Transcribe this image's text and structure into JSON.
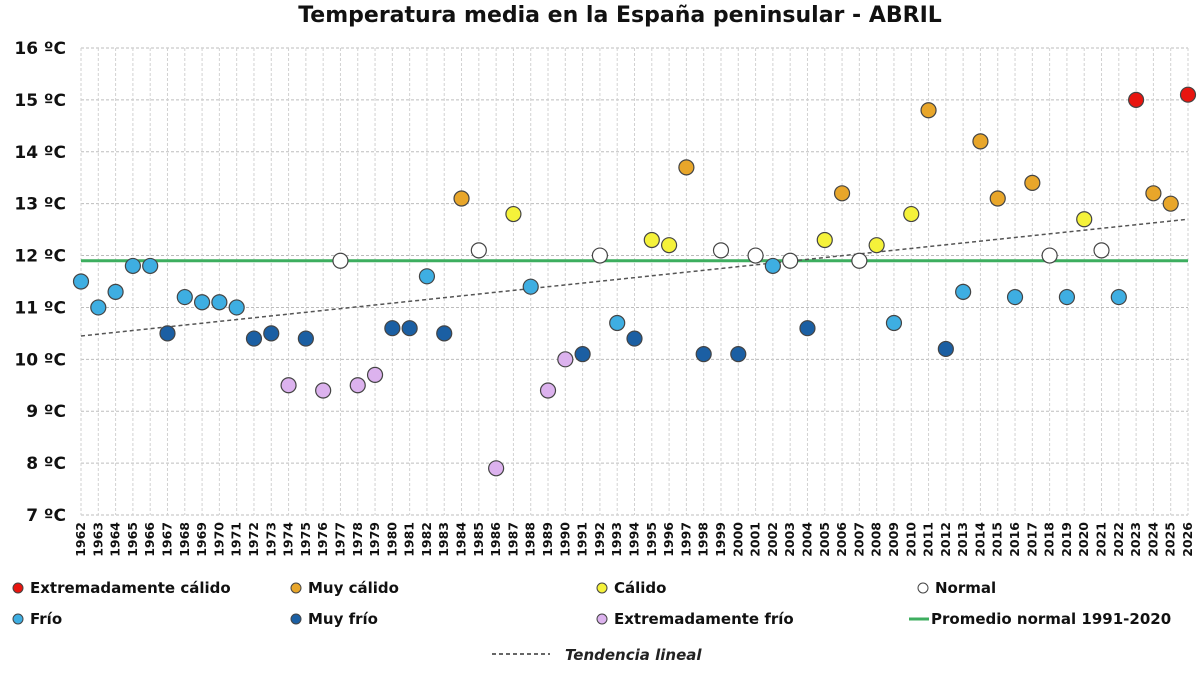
{
  "chart_data": {
    "type": "scatter",
    "title": "Temperatura media en la España peninsular - ABRIL",
    "y_unit": "ºC",
    "ylim": [
      7,
      16
    ],
    "yticks": [
      7,
      8,
      9,
      10,
      11,
      12,
      13,
      14,
      15,
      16
    ],
    "xlim": [
      1962,
      2026
    ],
    "x_tick_labels": [
      "1962",
      "1963",
      "1964",
      "1965",
      "1966",
      "1967",
      "1968",
      "1969",
      "1970",
      "1971",
      "1972",
      "1973",
      "1974",
      "1975",
      "1976",
      "1977",
      "1978",
      "1979",
      "1980",
      "1981",
      "1982",
      "1983",
      "1984",
      "1985",
      "1986",
      "1987",
      "1988",
      "1989",
      "1990",
      "1991",
      "1992",
      "1993",
      "1994",
      "1995",
      "1996",
      "1997",
      "1998",
      "1999",
      "2000",
      "2001",
      "2002",
      "2003",
      "2004",
      "2005",
      "2006",
      "2007",
      "2008",
      "2009",
      "2010",
      "2011",
      "2012",
      "2013",
      "2014",
      "2015",
      "2016",
      "2017",
      "2018",
      "2019",
      "2020",
      "2021",
      "2022",
      "2023",
      "2024",
      "2025",
      "2026"
    ],
    "grid": true,
    "categories": [
      {
        "key": "ec",
        "label": "Extremadamente cálido",
        "color": "#e8150f"
      },
      {
        "key": "mc",
        "label": "Muy cálido",
        "color": "#e8a62a"
      },
      {
        "key": "c",
        "label": "Cálido",
        "color": "#f5f23a"
      },
      {
        "key": "n",
        "label": "Normal",
        "color": "#ffffff"
      },
      {
        "key": "f",
        "label": "Frío",
        "color": "#3eaee2"
      },
      {
        "key": "mf",
        "label": "Muy frío",
        "color": "#1b5fa3"
      },
      {
        "key": "ef",
        "label": "Extremadamente frío",
        "color": "#dcb2ee"
      }
    ],
    "points": [
      {
        "year": 1962,
        "value": 11.5,
        "cat": "f"
      },
      {
        "year": 1963,
        "value": 11.0,
        "cat": "f"
      },
      {
        "year": 1964,
        "value": 11.3,
        "cat": "f"
      },
      {
        "year": 1965,
        "value": 11.8,
        "cat": "f"
      },
      {
        "year": 1966,
        "value": 11.8,
        "cat": "f"
      },
      {
        "year": 1967,
        "value": 10.5,
        "cat": "mf"
      },
      {
        "year": 1968,
        "value": 11.2,
        "cat": "f"
      },
      {
        "year": 1969,
        "value": 11.1,
        "cat": "f"
      },
      {
        "year": 1970,
        "value": 11.1,
        "cat": "f"
      },
      {
        "year": 1971,
        "value": 11.0,
        "cat": "f"
      },
      {
        "year": 1972,
        "value": 10.4,
        "cat": "mf"
      },
      {
        "year": 1973,
        "value": 10.5,
        "cat": "mf"
      },
      {
        "year": 1974,
        "value": 9.5,
        "cat": "ef"
      },
      {
        "year": 1975,
        "value": 10.4,
        "cat": "mf"
      },
      {
        "year": 1976,
        "value": 9.4,
        "cat": "ef"
      },
      {
        "year": 1977,
        "value": 11.9,
        "cat": "n"
      },
      {
        "year": 1978,
        "value": 9.5,
        "cat": "ef"
      },
      {
        "year": 1979,
        "value": 9.7,
        "cat": "ef"
      },
      {
        "year": 1980,
        "value": 10.6,
        "cat": "mf"
      },
      {
        "year": 1981,
        "value": 10.6,
        "cat": "mf"
      },
      {
        "year": 1982,
        "value": 11.6,
        "cat": "f"
      },
      {
        "year": 1983,
        "value": 10.5,
        "cat": "mf"
      },
      {
        "year": 1984,
        "value": 13.1,
        "cat": "mc"
      },
      {
        "year": 1985,
        "value": 12.1,
        "cat": "n"
      },
      {
        "year": 1986,
        "value": 7.9,
        "cat": "ef"
      },
      {
        "year": 1987,
        "value": 12.8,
        "cat": "c"
      },
      {
        "year": 1988,
        "value": 11.4,
        "cat": "f"
      },
      {
        "year": 1989,
        "value": 9.4,
        "cat": "ef"
      },
      {
        "year": 1990,
        "value": 10.0,
        "cat": "ef"
      },
      {
        "year": 1991,
        "value": 10.1,
        "cat": "mf"
      },
      {
        "year": 1992,
        "value": 12.0,
        "cat": "n"
      },
      {
        "year": 1993,
        "value": 10.7,
        "cat": "f"
      },
      {
        "year": 1994,
        "value": 10.4,
        "cat": "mf"
      },
      {
        "year": 1995,
        "value": 12.3,
        "cat": "c"
      },
      {
        "year": 1996,
        "value": 12.2,
        "cat": "c"
      },
      {
        "year": 1997,
        "value": 13.7,
        "cat": "mc"
      },
      {
        "year": 1998,
        "value": 10.1,
        "cat": "mf"
      },
      {
        "year": 1999,
        "value": 12.1,
        "cat": "n"
      },
      {
        "year": 2000,
        "value": 10.1,
        "cat": "mf"
      },
      {
        "year": 2001,
        "value": 12.0,
        "cat": "n"
      },
      {
        "year": 2002,
        "value": 11.8,
        "cat": "f"
      },
      {
        "year": 2003,
        "value": 11.9,
        "cat": "n"
      },
      {
        "year": 2004,
        "value": 10.6,
        "cat": "mf"
      },
      {
        "year": 2005,
        "value": 12.3,
        "cat": "c"
      },
      {
        "year": 2006,
        "value": 13.2,
        "cat": "mc"
      },
      {
        "year": 2007,
        "value": 11.9,
        "cat": "n"
      },
      {
        "year": 2008,
        "value": 12.2,
        "cat": "c"
      },
      {
        "year": 2009,
        "value": 10.7,
        "cat": "f"
      },
      {
        "year": 2010,
        "value": 12.8,
        "cat": "c"
      },
      {
        "year": 2011,
        "value": 14.8,
        "cat": "mc"
      },
      {
        "year": 2012,
        "value": 10.2,
        "cat": "mf"
      },
      {
        "year": 2013,
        "value": 11.3,
        "cat": "f"
      },
      {
        "year": 2014,
        "value": 14.2,
        "cat": "mc"
      },
      {
        "year": 2015,
        "value": 13.1,
        "cat": "mc"
      },
      {
        "year": 2016,
        "value": 11.2,
        "cat": "f"
      },
      {
        "year": 2017,
        "value": 13.4,
        "cat": "mc"
      },
      {
        "year": 2018,
        "value": 12.0,
        "cat": "n"
      },
      {
        "year": 2019,
        "value": 11.2,
        "cat": "f"
      },
      {
        "year": 2020,
        "value": 12.7,
        "cat": "c"
      },
      {
        "year": 2021,
        "value": 12.1,
        "cat": "n"
      },
      {
        "year": 2022,
        "value": 11.2,
        "cat": "f"
      },
      {
        "year": 2023,
        "value": 15.0,
        "cat": "ec"
      },
      {
        "year": 2024,
        "value": 13.2,
        "cat": "mc"
      },
      {
        "year": 2025,
        "value": 13.0,
        "cat": "mc"
      },
      {
        "year": 2026,
        "value": 15.1,
        "cat": "ec"
      }
    ],
    "normal_line": {
      "label": "Promedio normal 1991-2020",
      "value": 11.9,
      "color": "#3dae5f"
    },
    "trend_line": {
      "label": "Tendencia lineal",
      "start": {
        "year": 1962,
        "value": 10.45
      },
      "end": {
        "year": 2026,
        "value": 12.7
      },
      "color": "#555555"
    },
    "legend_placement": "bottom"
  }
}
